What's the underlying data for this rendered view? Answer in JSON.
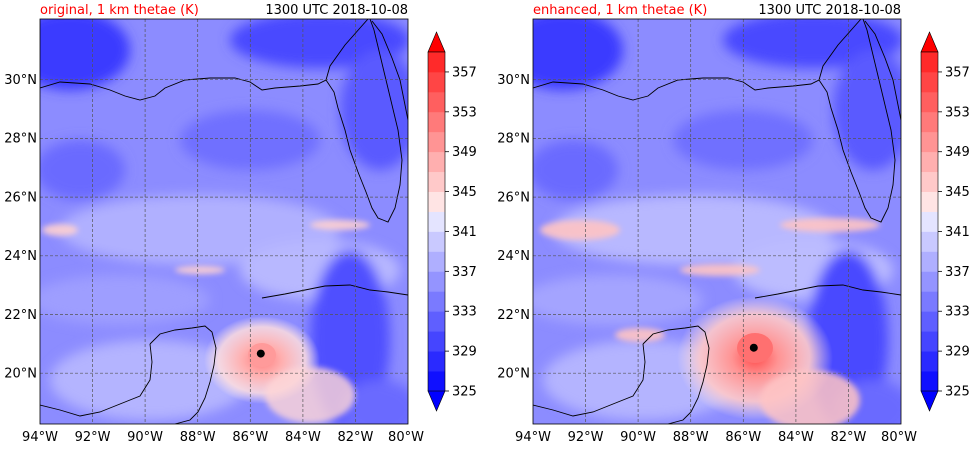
{
  "panels": [
    {
      "title": "original, 1 km thetae (K)",
      "time": "1300 UTC 2018-10-08",
      "center_mark": {
        "lon": -85.6,
        "lat": 20.6
      }
    },
    {
      "title": "enhanced, 1 km thetae (K)",
      "time": "1300 UTC 2018-10-08",
      "center_mark": {
        "lon": -85.6,
        "lat": 20.8
      }
    }
  ],
  "map": {
    "lon_range": [
      -94,
      -80
    ],
    "lat_range": [
      18.2,
      32
    ],
    "lon_ticks": [
      "94°W",
      "92°W",
      "90°W",
      "88°W",
      "86°W",
      "84°W",
      "82°W",
      "80°W"
    ],
    "lat_ticks": [
      "20°N",
      "22°N",
      "24°N",
      "26°N",
      "28°N",
      "30°N"
    ],
    "grid": true,
    "title_color": "#ff0000"
  },
  "colorbar": {
    "tick_labels": [
      "325",
      "329",
      "333",
      "337",
      "341",
      "345",
      "349",
      "353",
      "357"
    ],
    "levels": [
      325,
      327,
      329,
      331,
      333,
      335,
      337,
      339,
      341,
      343,
      345,
      347,
      349,
      351,
      353,
      355,
      357,
      359
    ],
    "colors": [
      "#1010ff",
      "#2a2aff",
      "#4545ff",
      "#5f5fff",
      "#7a7aff",
      "#9494ff",
      "#afafff",
      "#c9c9ff",
      "#e4e4ff",
      "#ffe4e4",
      "#ffc9c9",
      "#ffafaf",
      "#ff9494",
      "#ff7a7a",
      "#ff5f5f",
      "#ff4545",
      "#ff2a2a"
    ],
    "under_color": "#0000ff",
    "over_color": "#ff0000"
  }
}
